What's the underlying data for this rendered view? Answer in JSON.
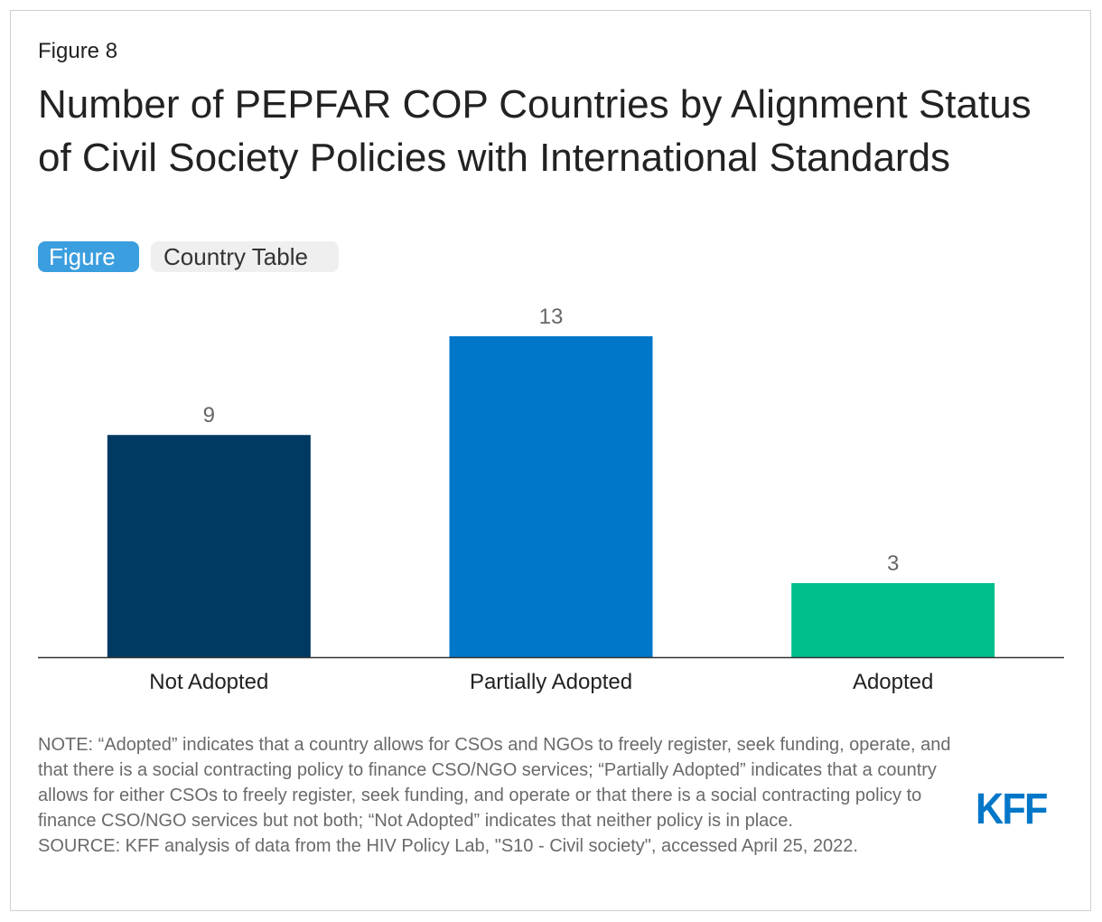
{
  "figure_label": "Figure 8",
  "title": "Number of PEPFAR COP Countries by Alignment Status of Civil Society Policies with International Standards",
  "tabs": [
    {
      "label": "Figure",
      "active": true
    },
    {
      "label": "Country Table",
      "active": false
    }
  ],
  "chart_data": {
    "type": "bar",
    "categories": [
      "Not Adopted",
      "Partially Adopted",
      "Adopted"
    ],
    "values": [
      9,
      13,
      3
    ],
    "value_labels": [
      "9",
      "13",
      "3"
    ],
    "colors": [
      "#003a63",
      "#0077c8",
      "#00bf8c"
    ],
    "xlabel": "",
    "ylabel": "",
    "ylim": [
      0,
      13
    ],
    "grid": false
  },
  "note": "NOTE: “Adopted” indicates that a country allows for CSOs and NGOs to freely register, seek funding, operate, and that there is a social contracting policy to finance CSO/NGO services; “Partially Adopted” indicates that a country allows for either CSOs to freely register, seek funding, and operate or that there is a social contracting policy to finance CSO/NGO services but not both; “Not Adopted” indicates that neither policy is in place.",
  "source": "SOURCE: KFF analysis of data from the HIV Policy Lab, \"S10 - Civil society\", accessed April 25, 2022.",
  "logo": "KFF"
}
